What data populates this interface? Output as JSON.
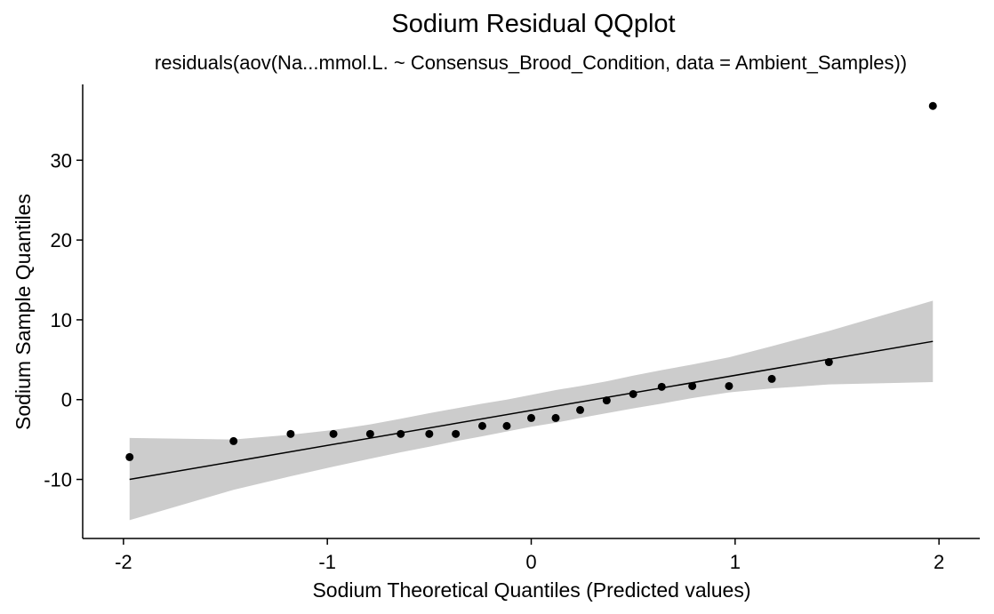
{
  "chart_data": {
    "type": "scatter",
    "title": "Sodium Residual QQplot",
    "subtitle": "residuals(aov(Na...mmol.L. ~ Consensus_Brood_Condition, data = Ambient_Samples))",
    "xlabel": "Sodium Theoretical Quantiles (Predicted values)",
    "ylabel": "Sodium Sample Quantiles",
    "xlim": [
      -2.2,
      2.2
    ],
    "ylim": [
      -17.4,
      39.5
    ],
    "x_ticks": [
      -2,
      -1,
      0,
      1,
      2
    ],
    "x_tick_labels": [
      "-2",
      "-1",
      "0",
      "1",
      "2"
    ],
    "y_ticks": [
      -10,
      0,
      10,
      20,
      30
    ],
    "y_tick_labels": [
      "-10",
      "0",
      "10",
      "20",
      "30"
    ],
    "grid": false,
    "points": {
      "x": [
        -1.97,
        -1.46,
        -1.18,
        -0.97,
        -0.79,
        -0.64,
        -0.5,
        -0.37,
        -0.24,
        -0.12,
        0.0,
        0.12,
        0.24,
        0.37,
        0.5,
        0.64,
        0.79,
        0.97,
        1.18,
        1.46,
        1.97
      ],
      "y": [
        -7.2,
        -5.2,
        -4.3,
        -4.3,
        -4.3,
        -4.3,
        -4.3,
        -4.3,
        -3.3,
        -3.3,
        -2.3,
        -2.3,
        -1.3,
        -0.1,
        0.7,
        1.6,
        1.7,
        1.7,
        2.6,
        4.7,
        36.8
      ]
    },
    "reference_line": {
      "x": [
        -1.97,
        1.97
      ],
      "y": [
        -10.0,
        7.3
      ]
    },
    "confidence_band": {
      "x": [
        -1.97,
        -1.46,
        -1.18,
        -0.97,
        -0.79,
        -0.64,
        -0.5,
        -0.37,
        -0.24,
        -0.12,
        0.0,
        0.12,
        0.24,
        0.37,
        0.5,
        0.64,
        0.79,
        0.97,
        1.18,
        1.46,
        1.97
      ],
      "lower": [
        -15.1,
        -11.3,
        -9.6,
        -8.4,
        -7.4,
        -6.6,
        -5.9,
        -5.2,
        -4.6,
        -4.0,
        -3.4,
        -2.9,
        -2.3,
        -1.7,
        -1.1,
        -0.5,
        0.2,
        0.9,
        1.4,
        1.9,
        2.2
      ],
      "upper": [
        -4.8,
        -5.0,
        -4.4,
        -3.8,
        -3.1,
        -2.4,
        -1.7,
        -1.1,
        -0.5,
        0.0,
        0.6,
        1.2,
        1.7,
        2.3,
        3.0,
        3.7,
        4.4,
        5.3,
        6.7,
        8.6,
        12.4
      ]
    },
    "colors": {
      "points": "#000000",
      "line": "#000000",
      "band": "#cccccc"
    }
  }
}
